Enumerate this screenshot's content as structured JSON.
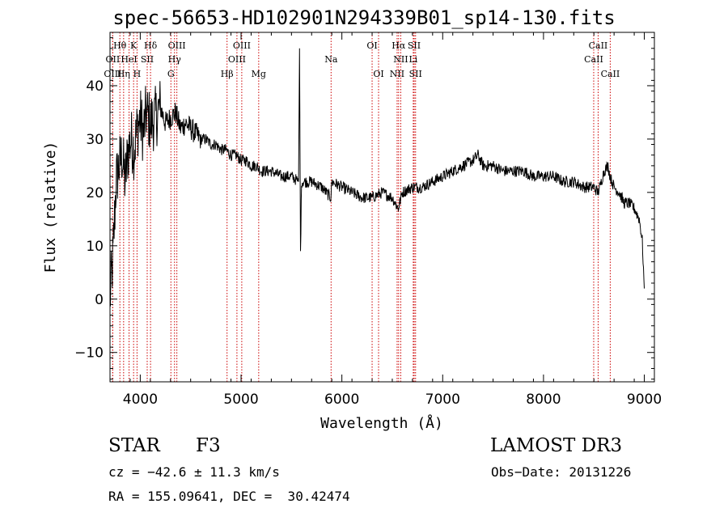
{
  "chart_data": {
    "type": "line",
    "title": "spec-56653-HD102901N294339B01_sp14-130.fits",
    "xlabel": "Wavelength (Å)",
    "ylabel": "Flux (relative)",
    "xlim": [
      3700,
      9100
    ],
    "ylim": [
      -15.5,
      50
    ],
    "xticks": [
      4000,
      5000,
      6000,
      7000,
      8000,
      9000
    ],
    "yticks": [
      -10,
      0,
      10,
      20,
      30,
      40
    ],
    "series": [
      {
        "name": "flux",
        "x": [
          3700,
          3730,
          3760,
          3790,
          3820,
          3850,
          3880,
          3910,
          3940,
          3970,
          4000,
          4030,
          4060,
          4100,
          4150,
          4200,
          4250,
          4300,
          4350,
          4400,
          4450,
          4500,
          4550,
          4600,
          4650,
          4700,
          4750,
          4800,
          4850,
          4900,
          4950,
          5000,
          5050,
          5100,
          5150,
          5200,
          5300,
          5400,
          5500,
          5570,
          5580,
          5590,
          5600,
          5700,
          5800,
          5890,
          5900,
          6000,
          6100,
          6200,
          6300,
          6400,
          6500,
          6560,
          6600,
          6700,
          6800,
          6900,
          7000,
          7100,
          7200,
          7300,
          7350,
          7400,
          7500,
          7600,
          7700,
          7800,
          7900,
          8000,
          8100,
          8200,
          8300,
          8400,
          8500,
          8540,
          8560,
          8600,
          8640,
          8660,
          8700,
          8750,
          8800,
          8850,
          8900,
          8950,
          8980,
          9000
        ],
        "y": [
          0,
          8,
          22,
          25,
          27,
          22,
          28,
          30,
          28,
          32,
          34,
          31,
          35,
          33,
          34,
          36,
          33,
          34,
          35,
          32,
          33,
          32,
          31,
          30,
          30,
          29,
          29,
          28,
          28,
          27,
          27,
          26,
          26,
          25,
          25,
          24,
          24,
          23,
          23,
          22,
          47,
          9,
          22,
          22,
          21,
          19,
          22,
          21,
          20,
          19,
          19,
          20,
          19,
          17,
          20,
          21,
          21,
          22,
          23,
          24,
          25,
          26,
          27,
          25,
          25,
          24,
          24,
          24,
          23,
          23,
          23,
          22,
          22,
          21,
          21,
          20,
          21,
          24,
          25,
          23,
          21,
          20,
          18,
          18,
          17,
          15,
          11,
          2
        ]
      }
    ],
    "lines": [
      {
        "label": "Hθ",
        "x": 3798,
        "row": 1
      },
      {
        "label": "OII",
        "x": 3727,
        "row": 2
      },
      {
        "label": "OIII",
        "x": 3727,
        "row": 3
      },
      {
        "label": "K",
        "x": 3934,
        "row": 1
      },
      {
        "label": "HeI",
        "x": 3889,
        "row": 2
      },
      {
        "label": "Hη",
        "x": 3835,
        "row": 3
      },
      {
        "label": "SII",
        "x": 4069,
        "row": 2
      },
      {
        "label": "H",
        "x": 3968,
        "row": 3
      },
      {
        "label": "Hδ",
        "x": 4102,
        "row": 1
      },
      {
        "label": "OIII",
        "x": 4363,
        "row": 1
      },
      {
        "label": "Hγ",
        "x": 4340,
        "row": 2
      },
      {
        "label": "G",
        "x": 4304,
        "row": 3
      },
      {
        "label": "OIII",
        "x": 5007,
        "row": 1
      },
      {
        "label": "OIII",
        "x": 4959,
        "row": 2
      },
      {
        "label": "Hβ",
        "x": 4861,
        "row": 3
      },
      {
        "label": "Mg",
        "x": 5175,
        "row": 3
      },
      {
        "label": "Na",
        "x": 5893,
        "row": 2
      },
      {
        "label": "OI",
        "x": 6300,
        "row": 1
      },
      {
        "label": "OI",
        "x": 6364,
        "row": 3
      },
      {
        "label": "Hα",
        "x": 6563,
        "row": 1
      },
      {
        "label": "SII",
        "x": 6717,
        "row": 1
      },
      {
        "label": "NII",
        "x": 6584,
        "row": 2
      },
      {
        "label": "Li",
        "x": 6708,
        "row": 2
      },
      {
        "label": "NII",
        "x": 6548,
        "row": 3
      },
      {
        "label": "SII",
        "x": 6731,
        "row": 3
      },
      {
        "label": "CaII",
        "x": 8542,
        "row": 1
      },
      {
        "label": "CaII",
        "x": 8498,
        "row": 2
      },
      {
        "label": "CaII",
        "x": 8662,
        "row": 3
      }
    ],
    "line_color": "#000000",
    "marker_color": "#cc0000"
  },
  "info": {
    "obj_class": "STAR",
    "subclass": "F3",
    "survey": "LAMOST DR3",
    "cz": "cz = −42.6 ± 11.3 km/s",
    "obs_date": "Obs−Date: 20131226",
    "coords": "RA = 155.09641, DEC =  30.42474"
  }
}
